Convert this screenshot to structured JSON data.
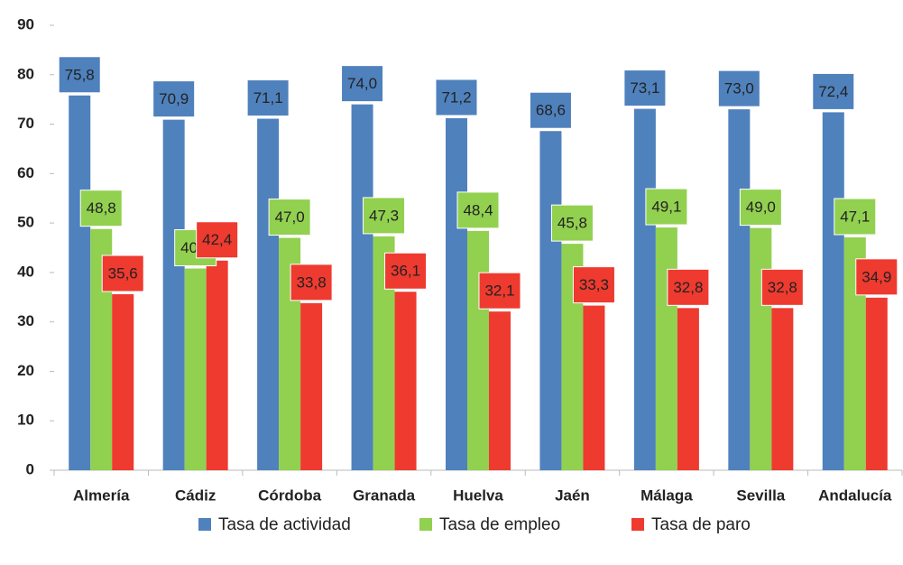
{
  "chart_data": {
    "type": "bar",
    "categories": [
      "Almería",
      "Cádiz",
      "Córdoba",
      "Granada",
      "Huelva",
      "Jaén",
      "Málaga",
      "Sevilla",
      "Andalucía"
    ],
    "series": [
      {
        "name": "Tasa de actividad",
        "color": "#4f81bd",
        "values": [
          75.8,
          70.9,
          71.1,
          74.0,
          71.2,
          68.6,
          73.1,
          73.0,
          72.4
        ],
        "value_labels": [
          "75,8",
          "70,9",
          "71,1",
          "74,0",
          "71,2",
          "68,6",
          "73,1",
          "73,0",
          "72,4"
        ]
      },
      {
        "name": "Tasa de empleo",
        "color": "#92d050",
        "values": [
          48.8,
          40.8,
          47.0,
          47.3,
          48.4,
          45.8,
          49.1,
          49.0,
          47.1
        ],
        "value_labels": [
          "48,8",
          "40,8",
          "47,0",
          "47,3",
          "48,4",
          "45,8",
          "49,1",
          "49,0",
          "47,1"
        ]
      },
      {
        "name": "Tasa de paro",
        "color": "#ee3a2f",
        "values": [
          35.6,
          42.4,
          33.8,
          36.1,
          32.1,
          33.3,
          32.8,
          32.8,
          34.9
        ],
        "value_labels": [
          "35,6",
          "42,4",
          "33,8",
          "36,1",
          "32,1",
          "33,3",
          "32,8",
          "32,8",
          "34,9"
        ]
      }
    ],
    "ylim": [
      0,
      90
    ],
    "yticks": [
      0,
      10,
      20,
      30,
      40,
      50,
      60,
      70,
      80,
      90
    ],
    "legend": "bottom"
  }
}
